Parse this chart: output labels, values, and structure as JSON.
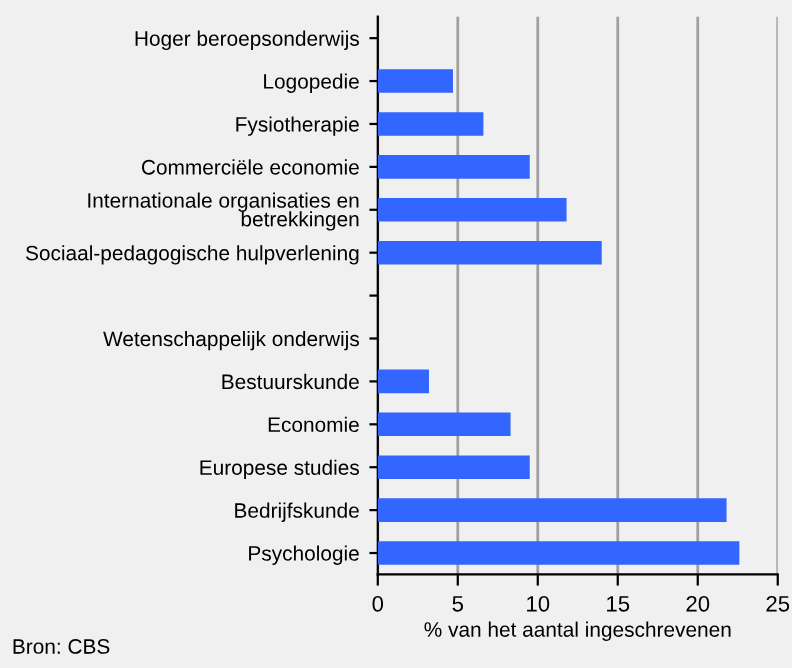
{
  "chart_data": {
    "type": "bar",
    "orientation": "horizontal",
    "categories": [
      "Hoger beroepsonderwijs",
      "Logopedie",
      "Fysiotherapie",
      "Commerciële economie",
      "Internationale organisaties en\nbetrekkingen",
      "Sociaal-pedagogische hulpverlening",
      null,
      "Wetenschappelijk onderwijs",
      "Bestuurskunde",
      "Economie",
      "Europese studies",
      "Bedrijfskunde",
      "Psychologie"
    ],
    "values": [
      null,
      4.7,
      6.6,
      9.5,
      11.8,
      14.0,
      null,
      null,
      3.2,
      8.3,
      9.5,
      21.8,
      22.6
    ],
    "color": "#3366ff",
    "xlabel": "% van het aantal ingeschrevenen",
    "xlim": [
      0,
      25
    ],
    "xticks": [
      0,
      5,
      10,
      15,
      20,
      25
    ],
    "grid": "x",
    "annotations": [
      "Bron: CBS"
    ]
  }
}
